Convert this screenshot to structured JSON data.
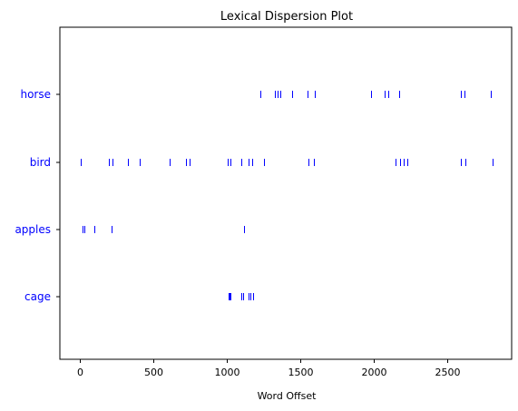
{
  "chart_data": {
    "type": "scatter",
    "title": "Lexical Dispersion Plot",
    "xlabel": "Word Offset",
    "ylabel": "",
    "xlim": [
      -135,
      2935
    ],
    "xticks": [
      0,
      500,
      1000,
      1500,
      2000,
      2500
    ],
    "categories": [
      "horse",
      "bird",
      "apples",
      "cage"
    ],
    "grid": false,
    "marker": "|",
    "color": "#0000ff",
    "series": [
      {
        "name": "horse",
        "x": [
          1230,
          1325,
          1345,
          1365,
          1445,
          1550,
          1595,
          1980,
          2070,
          2095,
          2170,
          2590,
          2615,
          2795
        ]
      },
      {
        "name": "bird",
        "x": [
          5,
          200,
          225,
          325,
          405,
          610,
          720,
          745,
          1005,
          1025,
          1100,
          1150,
          1170,
          1255,
          1555,
          1590,
          2145,
          2175,
          2200,
          2225,
          2590,
          2620,
          2805
        ]
      },
      {
        "name": "apples",
        "x": [
          20,
          30,
          100,
          215,
          1115
        ]
      },
      {
        "name": "cage",
        "x": [
          1010,
          1020,
          1025,
          1100,
          1110,
          1150,
          1160,
          1175
        ]
      }
    ]
  }
}
